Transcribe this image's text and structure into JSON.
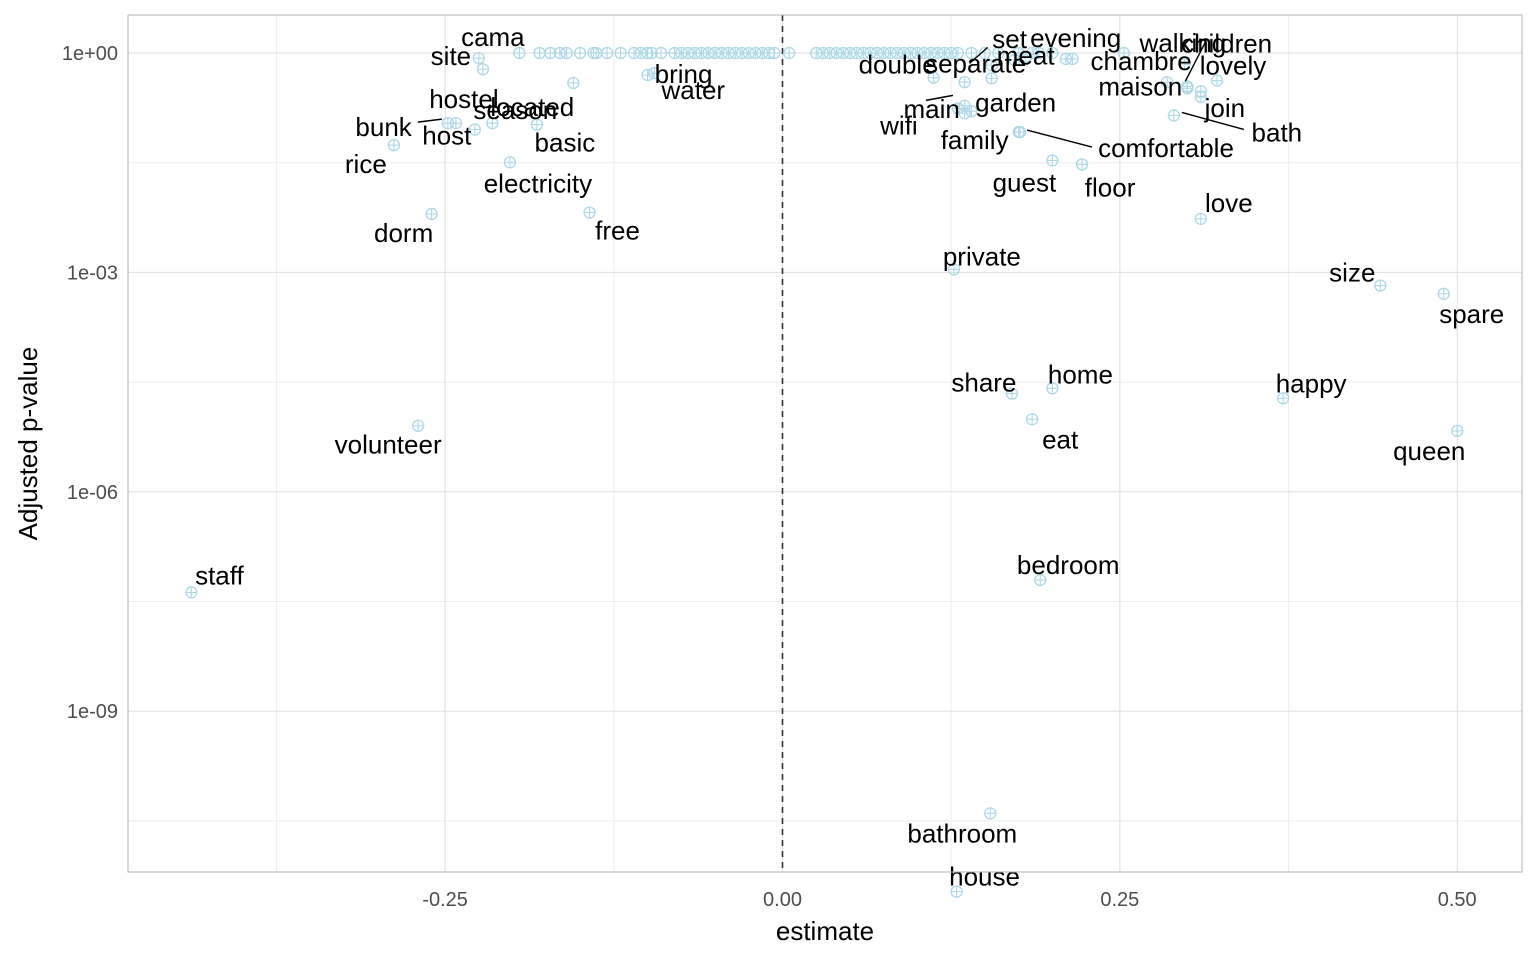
{
  "chart_data": {
    "type": "scatter",
    "xlabel": "estimate",
    "ylabel": "Adjusted p-value",
    "x_ticks": [
      {
        "value": -0.25,
        "label": "-0.25"
      },
      {
        "value": 0.0,
        "label": "0.00"
      },
      {
        "value": 0.25,
        "label": "0.25"
      },
      {
        "value": 0.5,
        "label": "0.50"
      }
    ],
    "y_scale": "log10",
    "y_ticks": [
      {
        "value": 1,
        "label": "1e+00"
      },
      {
        "value": 0.001,
        "label": "1e-03"
      },
      {
        "value": 1e-06,
        "label": "1e-06"
      },
      {
        "value": 1e-09,
        "label": "1e-09"
      }
    ],
    "xlim": [
      -0.485,
      0.548
    ],
    "ylim_log10": [
      -11.2,
      0.52
    ],
    "reference_line": {
      "x": 0.0,
      "style": "dashed"
    },
    "point_color": "#add8e6",
    "grid": true,
    "labeled_points": [
      {
        "label": "staff",
        "x": -0.438,
        "y": 4.2e-08
      },
      {
        "label": "volunteer",
        "x": -0.27,
        "y": 8e-06
      },
      {
        "label": "dorm",
        "x": -0.26,
        "y": 0.0063
      },
      {
        "label": "free",
        "x": -0.143,
        "y": 0.0066
      },
      {
        "label": "electricity",
        "x": -0.202,
        "y": 0.032
      },
      {
        "label": "rice",
        "x": -0.288,
        "y": 0.055
      },
      {
        "label": "host",
        "x": -0.228,
        "y": 0.09
      },
      {
        "label": "bunk",
        "x": -0.248,
        "y": 0.11
      },
      {
        "label": "basic",
        "x": -0.182,
        "y": 0.105
      },
      {
        "label": "hostel",
        "x": -0.242,
        "y": 0.11
      },
      {
        "label": "located",
        "x": -0.215,
        "y": 0.11
      },
      {
        "label": "season",
        "x": -0.155,
        "y": 0.39
      },
      {
        "label": "bring",
        "x": -0.1,
        "y": 0.5
      },
      {
        "label": "site",
        "x": -0.222,
        "y": 0.6
      },
      {
        "label": "water",
        "x": -0.095,
        "y": 0.53
      },
      {
        "label": "cama",
        "x": -0.225,
        "y": 0.85
      },
      {
        "label": "double",
        "x": 0.112,
        "y": 0.46
      },
      {
        "label": "main",
        "x": 0.135,
        "y": 0.4
      },
      {
        "label": "wifi",
        "x": 0.13,
        "y": 0.175
      },
      {
        "label": "garden",
        "x": 0.135,
        "y": 0.15
      },
      {
        "label": "meat",
        "x": 0.155,
        "y": 0.68
      },
      {
        "label": "set",
        "x": 0.172,
        "y": 0.8
      },
      {
        "label": "evening",
        "x": 0.215,
        "y": 0.83
      },
      {
        "label": "walking",
        "x": 0.253,
        "y": 1.0
      },
      {
        "label": "chambre",
        "x": 0.285,
        "y": 0.4
      },
      {
        "label": "separate",
        "x": 0.155,
        "y": 0.45
      },
      {
        "label": "children",
        "x": 0.298,
        "y": 0.7
      },
      {
        "label": "lovely",
        "x": 0.322,
        "y": 0.42
      },
      {
        "label": "join",
        "x": 0.31,
        "y": 0.25
      },
      {
        "label": "maison",
        "x": 0.3,
        "y": 0.35
      },
      {
        "label": "bath",
        "x": 0.29,
        "y": 0.14
      },
      {
        "label": "family",
        "x": 0.175,
        "y": 0.083
      },
      {
        "label": "comfortable",
        "x": 0.176,
        "y": 0.083
      },
      {
        "label": "guest",
        "x": 0.2,
        "y": 0.034
      },
      {
        "label": "floor",
        "x": 0.222,
        "y": 0.03
      },
      {
        "label": "love",
        "x": 0.31,
        "y": 0.0054
      },
      {
        "label": "private",
        "x": 0.127,
        "y": 0.0011
      },
      {
        "label": "size",
        "x": 0.443,
        "y": 0.00066
      },
      {
        "label": "spare",
        "x": 0.49,
        "y": 0.00051
      },
      {
        "label": "share",
        "x": 0.17,
        "y": 2.2e-05
      },
      {
        "label": "home",
        "x": 0.2,
        "y": 2.6e-05
      },
      {
        "label": "happy",
        "x": 0.371,
        "y": 1.9e-05
      },
      {
        "label": "eat",
        "x": 0.185,
        "y": 9.8e-06
      },
      {
        "label": "queen",
        "x": 0.5,
        "y": 6.8e-06
      },
      {
        "label": "bedroom",
        "x": 0.191,
        "y": 6.2e-08
      },
      {
        "label": "bathroom",
        "x": 0.154,
        "y": 4e-11
      },
      {
        "label": "house",
        "x": 0.129,
        "y": 3.4e-12
      }
    ],
    "unlabeled_points": [
      {
        "x": -0.195,
        "y": 1
      },
      {
        "x": -0.18,
        "y": 1
      },
      {
        "x": -0.172,
        "y": 1
      },
      {
        "x": -0.165,
        "y": 1
      },
      {
        "x": -0.16,
        "y": 1
      },
      {
        "x": -0.15,
        "y": 1
      },
      {
        "x": -0.14,
        "y": 1
      },
      {
        "x": -0.13,
        "y": 1
      },
      {
        "x": -0.12,
        "y": 1
      },
      {
        "x": -0.11,
        "y": 1
      },
      {
        "x": -0.105,
        "y": 1
      },
      {
        "x": -0.1,
        "y": 1
      },
      {
        "x": -0.097,
        "y": 1
      },
      {
        "x": -0.09,
        "y": 1
      },
      {
        "x": -0.08,
        "y": 1
      },
      {
        "x": -0.075,
        "y": 1
      },
      {
        "x": -0.07,
        "y": 1
      },
      {
        "x": -0.065,
        "y": 1
      },
      {
        "x": -0.06,
        "y": 1
      },
      {
        "x": -0.055,
        "y": 1
      },
      {
        "x": -0.05,
        "y": 1
      },
      {
        "x": -0.045,
        "y": 1
      },
      {
        "x": -0.04,
        "y": 1
      },
      {
        "x": -0.035,
        "y": 1
      },
      {
        "x": -0.03,
        "y": 1
      },
      {
        "x": -0.025,
        "y": 1
      },
      {
        "x": -0.02,
        "y": 1
      },
      {
        "x": -0.015,
        "y": 1
      },
      {
        "x": -0.01,
        "y": 1
      },
      {
        "x": -0.006,
        "y": 1
      },
      {
        "x": 0.005,
        "y": 1
      },
      {
        "x": 0.025,
        "y": 1
      },
      {
        "x": 0.03,
        "y": 1
      },
      {
        "x": 0.035,
        "y": 1
      },
      {
        "x": 0.04,
        "y": 1
      },
      {
        "x": 0.045,
        "y": 1
      },
      {
        "x": 0.05,
        "y": 1
      },
      {
        "x": 0.055,
        "y": 1
      },
      {
        "x": 0.06,
        "y": 1
      },
      {
        "x": 0.065,
        "y": 1
      },
      {
        "x": 0.07,
        "y": 1
      },
      {
        "x": 0.075,
        "y": 1
      },
      {
        "x": 0.08,
        "y": 1
      },
      {
        "x": 0.085,
        "y": 1
      },
      {
        "x": 0.09,
        "y": 1
      },
      {
        "x": 0.095,
        "y": 1
      },
      {
        "x": 0.1,
        "y": 1
      },
      {
        "x": 0.105,
        "y": 1
      },
      {
        "x": 0.11,
        "y": 1
      },
      {
        "x": 0.115,
        "y": 1
      },
      {
        "x": 0.12,
        "y": 1
      },
      {
        "x": 0.125,
        "y": 1
      },
      {
        "x": 0.13,
        "y": 1
      },
      {
        "x": 0.14,
        "y": 1
      },
      {
        "x": 0.15,
        "y": 1
      },
      {
        "x": 0.16,
        "y": 1
      },
      {
        "x": 0.175,
        "y": 1
      },
      {
        "x": 0.185,
        "y": 1
      },
      {
        "x": 0.19,
        "y": 1
      },
      {
        "x": 0.2,
        "y": 1
      },
      {
        "x": -0.138,
        "y": 1
      },
      {
        "x": 0.135,
        "y": 0.19
      },
      {
        "x": 0.14,
        "y": 0.16
      },
      {
        "x": 0.21,
        "y": 0.83
      },
      {
        "x": 0.18,
        "y": 0.88
      },
      {
        "x": 0.3,
        "y": 0.33
      },
      {
        "x": 0.31,
        "y": 0.3
      }
    ]
  }
}
